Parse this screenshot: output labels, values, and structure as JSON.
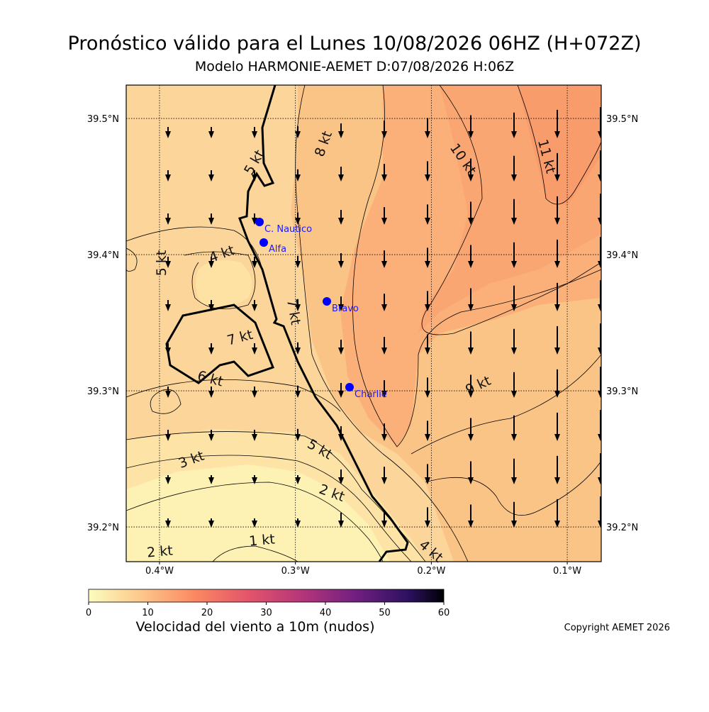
{
  "header": {
    "title": "Pronóstico válido para el Lunes 10/08/2026 06HZ (H+072Z)",
    "subtitle": "Modelo HARMONIE-AEMET D:07/08/2026 H:06Z"
  },
  "map": {
    "xlim": [
      -0.4245,
      -0.075
    ],
    "ylim": [
      39.1745,
      39.5245
    ],
    "xticks": [
      {
        "value": -0.4,
        "label": "0.4°W"
      },
      {
        "value": -0.3,
        "label": "0.3°W"
      },
      {
        "value": -0.2,
        "label": "0.2°W"
      },
      {
        "value": -0.1,
        "label": "0.1°W"
      }
    ],
    "yticks": [
      {
        "value": 39.2,
        "label": "39.2°N"
      },
      {
        "value": 39.3,
        "label": "39.3°N"
      },
      {
        "value": 39.4,
        "label": "39.4°N"
      },
      {
        "value": 39.5,
        "label": "39.5°N"
      }
    ],
    "contour_labels": [
      "5 kt",
      "8 kt",
      "10 kt",
      "11 kt",
      "4 kt",
      "5 kt",
      "7 kt",
      "7 kt",
      "6 kt",
      "9 kt",
      "5 kt",
      "3 kt",
      "2 kt",
      "2 kt",
      "1 kt",
      "4 kt"
    ],
    "stations": [
      "C. Nautico",
      "Alfa",
      "Bravo",
      "Charlie"
    ]
  },
  "colorbar": {
    "lim": [
      0,
      60
    ],
    "ticks": [
      0,
      10,
      20,
      30,
      40,
      50,
      60
    ],
    "label": "Velocidad del viento a 10m (nudos)"
  },
  "footer": {
    "copyright": "Copyright AEMET 2026"
  }
}
